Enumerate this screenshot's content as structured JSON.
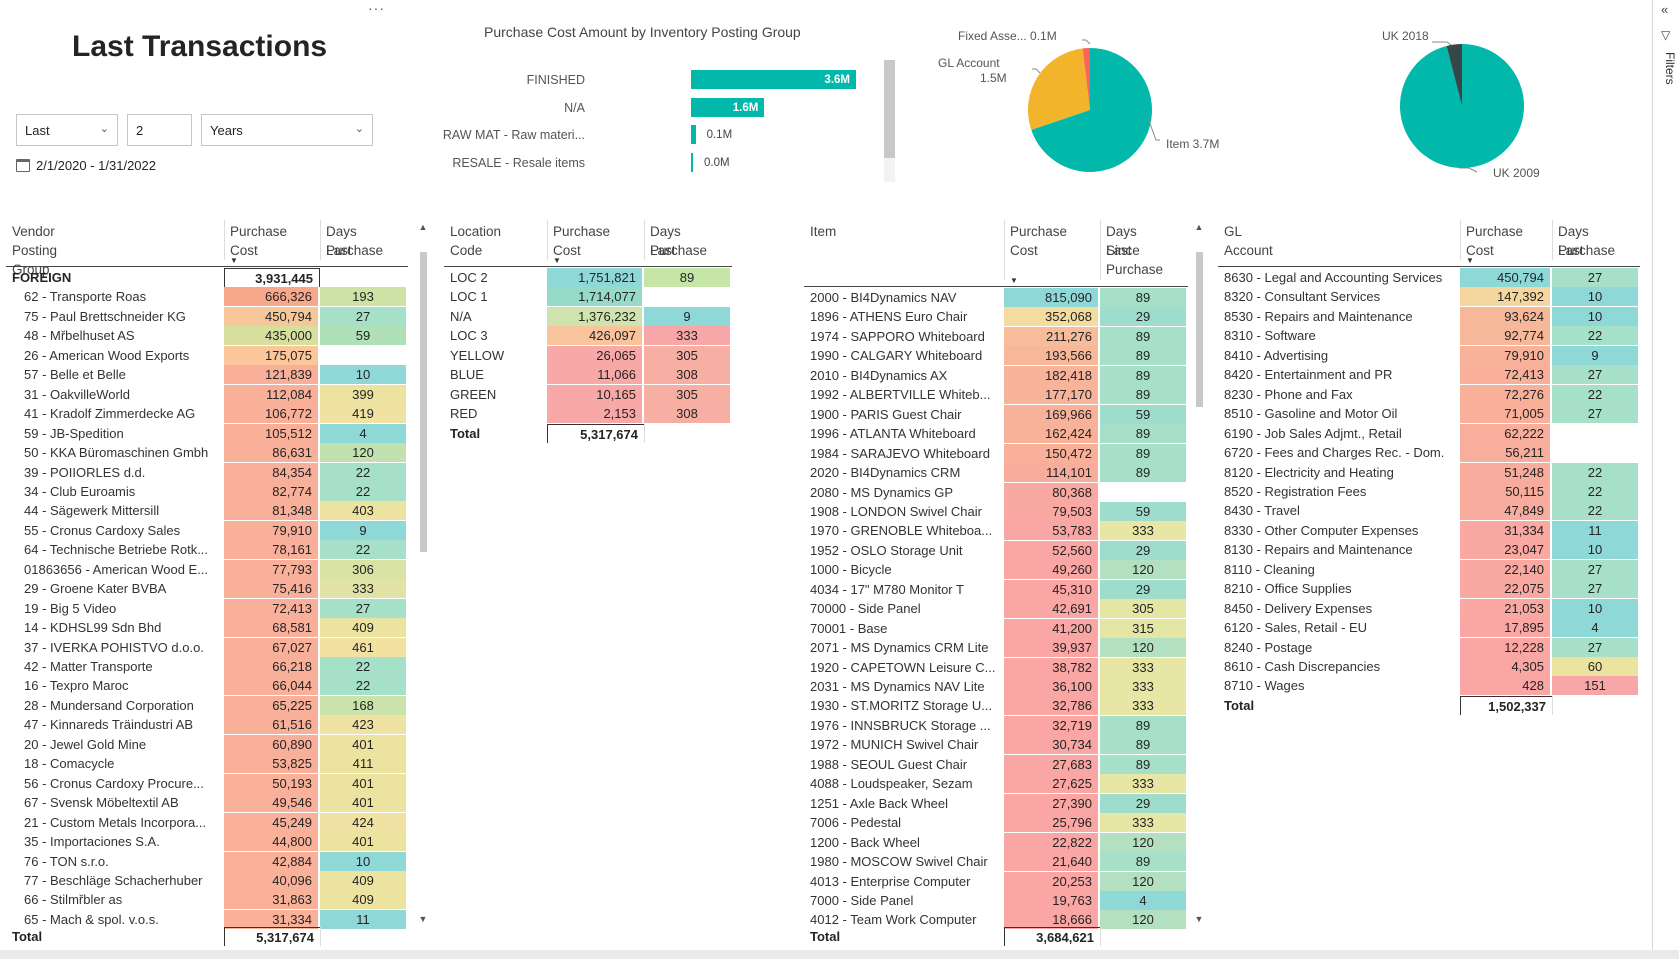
{
  "page": {
    "title": "Last Transactions"
  },
  "filters": {
    "relative": "Last",
    "count": "2",
    "unit": "Years",
    "date_range": "2/1/2020 - 1/31/2022"
  },
  "filter_pane": {
    "label": "Filters"
  },
  "bar_chart": {
    "chart_data": {
      "type": "bar",
      "title": "Purchase Cost Amount by Inventory Posting Group",
      "categories": [
        "FINISHED",
        "N/A",
        "RAW MAT - Raw materi...",
        "RESALE - Resale items"
      ],
      "values": [
        3.6,
        1.6,
        0.1,
        0.0
      ],
      "value_labels": [
        "3.6M",
        "1.6M",
        "0.1M",
        "0.0M"
      ],
      "max": 3.6,
      "color": "#01b8aa"
    }
  },
  "pie1": {
    "chart_data": {
      "type": "pie",
      "slices": [
        {
          "label": "Item",
          "value": 3.7,
          "value_label": "3.7M",
          "color": "#01b8aa"
        },
        {
          "label": "GL Account",
          "value": 1.5,
          "value_label": "1.5M",
          "color": "#f2b42b"
        },
        {
          "label": "Fixed Asse...",
          "value": 0.1,
          "value_label": "0.1M",
          "color": "#fd625e"
        }
      ]
    },
    "labels": {
      "item": "Item 3.7M",
      "gl_line1": "GL Account",
      "gl_line2": "1.5M",
      "fa": "Fixed Asse... 0.1M"
    }
  },
  "pie2": {
    "chart_data": {
      "type": "pie",
      "slices": [
        {
          "label": "UK 2009",
          "value": 96,
          "color": "#01b8aa"
        },
        {
          "label": "UK 2018",
          "value": 4,
          "color": "#374649"
        }
      ]
    },
    "labels": {
      "uk2018": "UK 2018",
      "uk2009": "UK 2009"
    }
  },
  "vendor_table": {
    "headers": {
      "col1": "Vendor Posting Group",
      "col2a": "Purchase",
      "col2b": "Cost",
      "col3a": "Days Last",
      "col3b": "Purchase"
    },
    "group_row": {
      "label": "FOREIGN",
      "cost": "3,931,445"
    },
    "rows": [
      {
        "label": "62 - Transporte Roas",
        "cost": "666,326",
        "days": "193",
        "cc": "#f7a88a",
        "dc": "#cde3a6"
      },
      {
        "label": "75 - Paul Brettschneider KG",
        "cost": "450,794",
        "days": "27",
        "cc": "#f6c79a",
        "dc": "#a6e0c8"
      },
      {
        "label": "48 - Mřbelhuset AS",
        "cost": "435,000",
        "days": "59",
        "cc": "#d6df9e",
        "dc": "#b0e0b8"
      },
      {
        "label": "26 - American Wood Exports",
        "cost": "175,075",
        "days": "",
        "cc": "#fbc79a",
        "dc": "#ffffff"
      },
      {
        "label": "57 - Belle et Belle",
        "cost": "121,839",
        "days": "10",
        "cc": "#f8b098",
        "dc": "#8ed9d8"
      },
      {
        "label": "31 - OakvilleWorld",
        "cost": "112,084",
        "days": "399",
        "cc": "#f8b098",
        "dc": "#ece3a0"
      },
      {
        "label": "41 - Kradolf Zimmerdecke AG",
        "cost": "106,772",
        "days": "419",
        "cc": "#f8b098",
        "dc": "#f0e2a2"
      },
      {
        "label": "59 - JB-Spedition",
        "cost": "105,512",
        "days": "4",
        "cc": "#f8b098",
        "dc": "#8ed9d8"
      },
      {
        "label": "50 - KKA Büromaschinen Gmbh",
        "cost": "86,631",
        "days": "120",
        "cc": "#f9b09a",
        "dc": "#c2e1b0"
      },
      {
        "label": "39 - POIIORLES d.d.",
        "cost": "84,354",
        "days": "22",
        "cc": "#f9b09a",
        "dc": "#a6e0c8"
      },
      {
        "label": "34 - Club Euroamis",
        "cost": "82,774",
        "days": "22",
        "cc": "#f9b09a",
        "dc": "#a6e0c8"
      },
      {
        "label": "44 - Sägewerk Mittersill",
        "cost": "81,348",
        "days": "403",
        "cc": "#f9b09a",
        "dc": "#ece3a0"
      },
      {
        "label": "55 - Cronus Cardoxy Sales",
        "cost": "79,910",
        "days": "9",
        "cc": "#f9b09a",
        "dc": "#8ed9d8"
      },
      {
        "label": "64 - Technische Betriebe Rotk...",
        "cost": "78,161",
        "days": "22",
        "cc": "#f9b09a",
        "dc": "#a6e0c8"
      },
      {
        "label": "01863656 - American Wood E...",
        "cost": "77,793",
        "days": "306",
        "cc": "#f9b09a",
        "dc": "#dae3a6"
      },
      {
        "label": "29 - Groene Kater BVBA",
        "cost": "75,416",
        "days": "333",
        "cc": "#f9b09a",
        "dc": "#e0e3a4"
      },
      {
        "label": "19 - Big 5 Video",
        "cost": "72,413",
        "days": "27",
        "cc": "#f9b09a",
        "dc": "#a6e0c8"
      },
      {
        "label": "14 - KDHSL99 Sdn Bhd",
        "cost": "68,581",
        "days": "409",
        "cc": "#f9b09a",
        "dc": "#ece3a0"
      },
      {
        "label": "37 - IVERKA POHISTVO d.o.o.",
        "cost": "67,027",
        "days": "461",
        "cc": "#f9b09a",
        "dc": "#f3e1a2"
      },
      {
        "label": "42 - Matter Transporte",
        "cost": "66,218",
        "days": "22",
        "cc": "#f9b09a",
        "dc": "#a6e0c8"
      },
      {
        "label": "16 - Texpro Maroc",
        "cost": "66,044",
        "days": "22",
        "cc": "#f9b09a",
        "dc": "#a6e0c8"
      },
      {
        "label": "28 - Mundersand Corporation",
        "cost": "65,225",
        "days": "168",
        "cc": "#f9b09a",
        "dc": "#cae2ac"
      },
      {
        "label": "47 - Kinnareds Träindustri AB",
        "cost": "61,516",
        "days": "423",
        "cc": "#f9b09a",
        "dc": "#f0e2a2"
      },
      {
        "label": "20 - Jewel Gold Mine",
        "cost": "60,890",
        "days": "401",
        "cc": "#f9b09a",
        "dc": "#ece3a0"
      },
      {
        "label": "18 - Comacycle",
        "cost": "53,825",
        "days": "411",
        "cc": "#f9b09a",
        "dc": "#ece3a0"
      },
      {
        "label": "56 - Cronus Cardoxy Procure...",
        "cost": "50,193",
        "days": "401",
        "cc": "#fab19a",
        "dc": "#ece3a0"
      },
      {
        "label": "67 - Svensk Möbeltextil AB",
        "cost": "49,546",
        "days": "401",
        "cc": "#fab19a",
        "dc": "#ece3a0"
      },
      {
        "label": "21 - Custom Metals Incorpora...",
        "cost": "45,249",
        "days": "424",
        "cc": "#fab19a",
        "dc": "#f0e2a2"
      },
      {
        "label": "35 - Importaciones S.A.",
        "cost": "44,800",
        "days": "401",
        "cc": "#fab19a",
        "dc": "#ece3a0"
      },
      {
        "label": "76 - TON s.r.o.",
        "cost": "42,884",
        "days": "10",
        "cc": "#fab19a",
        "dc": "#8ed9d8"
      },
      {
        "label": "77 - Beschläge Schacherhuber",
        "cost": "40,096",
        "days": "409",
        "cc": "#fab19a",
        "dc": "#ece3a0"
      },
      {
        "label": "66 - Stilmřbler as",
        "cost": "31,863",
        "days": "409",
        "cc": "#fab19a",
        "dc": "#ece3a0"
      },
      {
        "label": "65 - Mach & spol. v.o.s.",
        "cost": "31,334",
        "days": "11",
        "cc": "#fab19a",
        "dc": "#8ed9d8"
      }
    ],
    "total": {
      "label": "Total",
      "cost": "5,317,674"
    }
  },
  "location_table": {
    "headers": {
      "col1": "Location Code",
      "col2a": "Purchase",
      "col2b": "Cost",
      "col3a": "Days Last",
      "col3b": "Purchase"
    },
    "rows": [
      {
        "label": "LOC 2",
        "cost": "1,751,821",
        "days": "89",
        "cc": "#8ed9d8",
        "dc": "#c6e6a8"
      },
      {
        "label": "LOC 1",
        "cost": "1,714,077",
        "days": "",
        "cc": "#96dac8",
        "dc": "#ffffff"
      },
      {
        "label": "N/A",
        "cost": "1,376,232",
        "days": "9",
        "cc": "#cfe3ae",
        "dc": "#8ed9d8"
      },
      {
        "label": "LOC 3",
        "cost": "426,097",
        "days": "333",
        "cc": "#f9c39c",
        "dc": "#f7a7a7"
      },
      {
        "label": "YELLOW",
        "cost": "26,065",
        "days": "305",
        "cc": "#f9a8a8",
        "dc": "#f8afa3"
      },
      {
        "label": "BLUE",
        "cost": "11,066",
        "days": "308",
        "cc": "#f9a8a8",
        "dc": "#f8afa3"
      },
      {
        "label": "GREEN",
        "cost": "10,165",
        "days": "305",
        "cc": "#f9a8a8",
        "dc": "#f8afa3"
      },
      {
        "label": "RED",
        "cost": "2,153",
        "days": "308",
        "cc": "#f9a8a8",
        "dc": "#f8afa3"
      }
    ],
    "total": {
      "label": "Total",
      "cost": "5,317,674"
    }
  },
  "item_table": {
    "headers": {
      "col1": "Item",
      "col2a": "Purchase",
      "col2b": "Cost",
      "col3a": "Days Since",
      "col3b": "Last",
      "col3c": "Purchase"
    },
    "rows": [
      {
        "label": "2000 - BI4Dynamics NAV",
        "cost": "815,090",
        "days": "89",
        "cc": "#8ed9d8",
        "dc": "#a6e0c8"
      },
      {
        "label": "1896 - ATHENS Euro Chair",
        "cost": "352,068",
        "days": "29",
        "cc": "#f4dc9e",
        "dc": "#9edccc"
      },
      {
        "label": "1974 - SAPPORO Whiteboard",
        "cost": "211,276",
        "days": "89",
        "cc": "#f7bc9a",
        "dc": "#a6e0c8"
      },
      {
        "label": "1990 - CALGARY Whiteboard",
        "cost": "193,566",
        "days": "89",
        "cc": "#f7b89a",
        "dc": "#a6e0c8"
      },
      {
        "label": "2010 - BI4Dynamics AX",
        "cost": "182,418",
        "days": "89",
        "cc": "#f7b49a",
        "dc": "#a6e0c8"
      },
      {
        "label": "1992 - ALBERTVILLE Whiteb...",
        "cost": "177,170",
        "days": "89",
        "cc": "#f7b49a",
        "dc": "#a6e0c8"
      },
      {
        "label": "1900 - PARIS Guest Chair",
        "cost": "169,966",
        "days": "59",
        "cc": "#f8b29a",
        "dc": "#9edccc"
      },
      {
        "label": "1996 - ATLANTA Whiteboard",
        "cost": "162,424",
        "days": "89",
        "cc": "#f8b29a",
        "dc": "#a6e0c8"
      },
      {
        "label": "1984 - SARAJEVO Whiteboard",
        "cost": "150,472",
        "days": "89",
        "cc": "#f8b09a",
        "dc": "#a6e0c8"
      },
      {
        "label": "2020 - BI4Dynamics CRM",
        "cost": "114,101",
        "days": "89",
        "cc": "#f8ac9c",
        "dc": "#a6e0c8"
      },
      {
        "label": "2080 - MS Dynamics GP",
        "cost": "80,368",
        "days": "",
        "cc": "#f9a8a2",
        "dc": "#ffffff"
      },
      {
        "label": "1908 - LONDON Swivel Chair",
        "cost": "79,503",
        "days": "59",
        "cc": "#f9a8a2",
        "dc": "#9edccc"
      },
      {
        "label": "1970 - GRENOBLE Whiteboa...",
        "cost": "53,783",
        "days": "333",
        "cc": "#f9a6a4",
        "dc": "#e8e6a4"
      },
      {
        "label": "1952 - OSLO Storage Unit",
        "cost": "52,560",
        "days": "29",
        "cc": "#f9a6a4",
        "dc": "#9edccc"
      },
      {
        "label": "1000 - Bicycle",
        "cost": "49,260",
        "days": "120",
        "cc": "#f9a6a4",
        "dc": "#b2e0c0"
      },
      {
        "label": "4034 - 17\" M780 Monitor T",
        "cost": "45,310",
        "days": "29",
        "cc": "#f9a6a4",
        "dc": "#9edccc"
      },
      {
        "label": "70000 - Side Panel",
        "cost": "42,691",
        "days": "305",
        "cc": "#f9a6a4",
        "dc": "#e4e6a4"
      },
      {
        "label": "70001 - Base",
        "cost": "41,200",
        "days": "315",
        "cc": "#f9a6a4",
        "dc": "#e4e6a4"
      },
      {
        "label": "2071 - MS Dynamics CRM Lite",
        "cost": "39,937",
        "days": "120",
        "cc": "#f9a6a4",
        "dc": "#b2e0c0"
      },
      {
        "label": "1920 - CAPETOWN Leisure C...",
        "cost": "38,782",
        "days": "333",
        "cc": "#f9a6a4",
        "dc": "#e8e6a4"
      },
      {
        "label": "2031 - MS Dynamics NAV Lite",
        "cost": "36,100",
        "days": "333",
        "cc": "#f9a6a4",
        "dc": "#e8e6a4"
      },
      {
        "label": "1930 - ST.MORITZ Storage U...",
        "cost": "32,786",
        "days": "333",
        "cc": "#f9a6a4",
        "dc": "#e8e6a4"
      },
      {
        "label": "1976 - INNSBRUCK Storage ...",
        "cost": "32,719",
        "days": "89",
        "cc": "#f9a6a4",
        "dc": "#a6e0c8"
      },
      {
        "label": "1972 - MUNICH Swivel Chair",
        "cost": "30,734",
        "days": "89",
        "cc": "#f9a6a4",
        "dc": "#a6e0c8"
      },
      {
        "label": "1988 - SEOUL Guest Chair",
        "cost": "27,683",
        "days": "89",
        "cc": "#f9a6a4",
        "dc": "#a6e0c8"
      },
      {
        "label": "4088 - Loudspeaker, Sezam",
        "cost": "27,625",
        "days": "333",
        "cc": "#f9a6a4",
        "dc": "#e8e6a4"
      },
      {
        "label": "1251 - Axle Back Wheel",
        "cost": "27,390",
        "days": "29",
        "cc": "#f9a6a4",
        "dc": "#9edccc"
      },
      {
        "label": "7006 - Pedestal",
        "cost": "25,796",
        "days": "333",
        "cc": "#f9a6a4",
        "dc": "#e8e6a4"
      },
      {
        "label": "1200 - Back Wheel",
        "cost": "22,822",
        "days": "120",
        "cc": "#f9a6a4",
        "dc": "#b2e0c0"
      },
      {
        "label": "1980 - MOSCOW Swivel Chair",
        "cost": "21,640",
        "days": "89",
        "cc": "#f9a6a4",
        "dc": "#a6e0c8"
      },
      {
        "label": "4013 - Enterprise Computer",
        "cost": "20,253",
        "days": "120",
        "cc": "#f9a6a4",
        "dc": "#b2e0c0"
      },
      {
        "label": "7000 - Side Panel",
        "cost": "19,763",
        "days": "4",
        "cc": "#f9a6a4",
        "dc": "#8ed9d8"
      },
      {
        "label": "4012 - Team Work Computer",
        "cost": "18,666",
        "days": "120",
        "cc": "#f9a6a4",
        "dc": "#b2e0c0"
      }
    ],
    "total": {
      "label": "Total",
      "cost": "3,684,621"
    }
  },
  "gl_table": {
    "headers": {
      "col1": "GL Account",
      "col2a": "Purchase",
      "col2b": "Cost",
      "col3a": "Days Last",
      "col3b": "Purchase"
    },
    "rows": [
      {
        "label": "8630 - Legal and Accounting Services",
        "cost": "450,794",
        "days": "27",
        "cc": "#8ed9d8",
        "dc": "#a6e0c8"
      },
      {
        "label": "8320 - Consultant Services",
        "cost": "147,392",
        "days": "10",
        "cc": "#f4d69e",
        "dc": "#8ed9d8"
      },
      {
        "label": "8530 - Repairs and Maintenance",
        "cost": "93,624",
        "days": "10",
        "cc": "#f7b89a",
        "dc": "#8ed9d8"
      },
      {
        "label": "8310 - Software",
        "cost": "92,774",
        "days": "22",
        "cc": "#f7b89a",
        "dc": "#a6e0c8"
      },
      {
        "label": "8410 - Advertising",
        "cost": "79,910",
        "days": "9",
        "cc": "#f8b29a",
        "dc": "#8ed9d8"
      },
      {
        "label": "8420 - Entertainment and PR",
        "cost": "72,413",
        "days": "27",
        "cc": "#f8b09a",
        "dc": "#a6e0c8"
      },
      {
        "label": "8230 - Phone and Fax",
        "cost": "72,276",
        "days": "22",
        "cc": "#f8b09a",
        "dc": "#a6e0c8"
      },
      {
        "label": "8510 - Gasoline and Motor Oil",
        "cost": "71,005",
        "days": "27",
        "cc": "#f8b09a",
        "dc": "#a6e0c8"
      },
      {
        "label": "6190 - Job Sales Adjmt., Retail",
        "cost": "62,222",
        "days": "",
        "cc": "#f8ae9c",
        "dc": "#ffffff"
      },
      {
        "label": "6720 - Fees and Charges Rec. - Dom.",
        "cost": "56,211",
        "days": "",
        "cc": "#f8ae9c",
        "dc": "#ffffff"
      },
      {
        "label": "8120 - Electricity and Heating",
        "cost": "51,248",
        "days": "22",
        "cc": "#f8ac9e",
        "dc": "#a6e0c8"
      },
      {
        "label": "8520 - Registration Fees",
        "cost": "50,115",
        "days": "22",
        "cc": "#f8ac9e",
        "dc": "#a6e0c8"
      },
      {
        "label": "8430 - Travel",
        "cost": "47,849",
        "days": "22",
        "cc": "#f8ac9e",
        "dc": "#a6e0c8"
      },
      {
        "label": "8330 - Other Computer Expenses",
        "cost": "31,334",
        "days": "11",
        "cc": "#f9a8a2",
        "dc": "#8ed9d8"
      },
      {
        "label": "8130 - Repairs and Maintenance",
        "cost": "23,047",
        "days": "10",
        "cc": "#f9a8a2",
        "dc": "#8ed9d8"
      },
      {
        "label": "8110 - Cleaning",
        "cost": "22,140",
        "days": "27",
        "cc": "#f9a8a2",
        "dc": "#a6e0c8"
      },
      {
        "label": "8210 - Office Supplies",
        "cost": "22,075",
        "days": "27",
        "cc": "#f9a8a2",
        "dc": "#a6e0c8"
      },
      {
        "label": "8450 - Delivery Expenses",
        "cost": "21,053",
        "days": "10",
        "cc": "#f9a8a2",
        "dc": "#8ed9d8"
      },
      {
        "label": "6120 - Sales, Retail - EU",
        "cost": "17,895",
        "days": "4",
        "cc": "#f9a6a4",
        "dc": "#8ed9d8"
      },
      {
        "label": "8240 - Postage",
        "cost": "12,228",
        "days": "27",
        "cc": "#f9a6a4",
        "dc": "#a6e0c8"
      },
      {
        "label": "8610 - Cash Discrepancies",
        "cost": "4,305",
        "days": "60",
        "cc": "#f9a6a4",
        "dc": "#ece3a0"
      },
      {
        "label": "8710 - Wages",
        "cost": "428",
        "days": "151",
        "cc": "#f9a6a4",
        "dc": "#f7a7a7"
      }
    ],
    "total": {
      "label": "Total",
      "cost": "1,502,337"
    }
  }
}
